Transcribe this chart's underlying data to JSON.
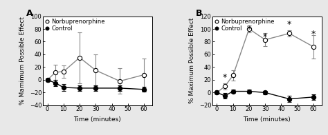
{
  "time": [
    0,
    5,
    10,
    20,
    30,
    45,
    60
  ],
  "A_norbu_y": [
    0,
    12,
    13,
    35,
    15,
    -2,
    8
  ],
  "A_norbu_yerr": [
    2,
    12,
    10,
    40,
    25,
    20,
    25
  ],
  "A_ctrl_y": [
    0,
    -5,
    -12,
    -13,
    -13,
    -13,
    -15
  ],
  "A_ctrl_yerr": [
    2,
    5,
    5,
    4,
    4,
    4,
    4
  ],
  "B_norbu_y": [
    0,
    10,
    27,
    100,
    83,
    93,
    72
  ],
  "B_norbu_yerr": [
    2,
    5,
    8,
    5,
    10,
    5,
    18
  ],
  "B_ctrl_y": [
    0,
    -5,
    2,
    2,
    0,
    -10,
    -7
  ],
  "B_ctrl_yerr": [
    2,
    4,
    3,
    3,
    3,
    5,
    4
  ],
  "B_star_times": [
    5,
    20,
    30,
    45,
    60
  ],
  "B_star_y": [
    17,
    92,
    80,
    100,
    85
  ],
  "ylabel_A": "% Mamimum Possible Effect",
  "ylabel_B": "% Maximum Possible Effect",
  "xlabel": "Time (minutes)",
  "label_norbu": "Norbuprenorphine",
  "label_ctrl": "Control",
  "panel_A": "A",
  "panel_B": "B",
  "A_ylim": [
    -40,
    100
  ],
  "A_yticks": [
    -40,
    -20,
    0,
    20,
    40,
    60,
    80,
    100
  ],
  "B_ylim": [
    -20,
    120
  ],
  "B_yticks": [
    -20,
    0,
    20,
    40,
    60,
    80,
    100,
    120
  ],
  "bg_color": "#e8e8e8",
  "line_color": "#888888",
  "markersize": 4.5,
  "linewidth": 1.0,
  "capsize": 2,
  "elinewidth": 0.8,
  "font_size_label": 6.5,
  "font_size_tick": 6,
  "font_size_legend": 6,
  "font_size_panel": 9,
  "font_size_star": 9
}
